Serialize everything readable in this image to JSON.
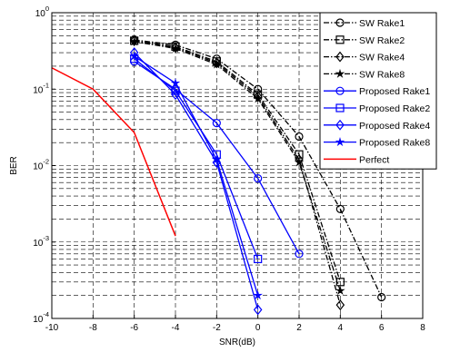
{
  "chart_data": {
    "type": "line",
    "xlabel": "SNR(dB)",
    "ylabel": "BER",
    "xlim": [
      -10,
      8
    ],
    "ylim": [
      0.0001,
      1
    ],
    "yscale": "log",
    "grid": true,
    "legend_position": "top-right",
    "x_ticks": [
      "-10",
      "-8",
      "-6",
      "-4",
      "-2",
      "0",
      "2",
      "4",
      "6",
      "8"
    ],
    "y_ticks": [
      {
        "base": "10",
        "exp": "0",
        "value": 1
      },
      {
        "base": "10",
        "exp": "-1",
        "value": 0.1
      },
      {
        "base": "10",
        "exp": "-2",
        "value": 0.01
      },
      {
        "base": "10",
        "exp": "-3",
        "value": 0.001
      },
      {
        "base": "10",
        "exp": "-4",
        "value": 0.0001
      }
    ],
    "series": [
      {
        "name": "SW Rake1",
        "color": "#000000",
        "dash": "dashdot",
        "marker": "circle",
        "x": [
          -6,
          -4,
          -2,
          0,
          2,
          4,
          6
        ],
        "y": [
          0.44,
          0.38,
          0.25,
          0.1,
          0.024,
          0.0027,
          0.00019
        ]
      },
      {
        "name": "SW Rake2",
        "color": "#000000",
        "dash": "dashdot",
        "marker": "square",
        "x": [
          -6,
          -4,
          -2,
          0,
          2,
          4
        ],
        "y": [
          0.43,
          0.36,
          0.23,
          0.085,
          0.014,
          0.0003
        ]
      },
      {
        "name": "SW Rake4",
        "color": "#000000",
        "dash": "dashdot",
        "marker": "diamond",
        "x": [
          -6,
          -4,
          -2,
          0,
          2,
          4
        ],
        "y": [
          0.43,
          0.35,
          0.22,
          0.08,
          0.012,
          0.00015
        ]
      },
      {
        "name": "SW Rake8",
        "color": "#000000",
        "dash": "dashdot",
        "marker": "star",
        "x": [
          -6,
          -4,
          -2,
          0,
          2,
          4
        ],
        "y": [
          0.42,
          0.34,
          0.21,
          0.075,
          0.011,
          0.00023
        ]
      },
      {
        "name": "Proposed Rake1",
        "color": "#0000ff",
        "dash": "solid",
        "marker": "circle",
        "x": [
          -6,
          -4,
          -2,
          0,
          2
        ],
        "y": [
          0.23,
          0.1,
          0.036,
          0.0068,
          0.0007
        ]
      },
      {
        "name": "Proposed Rake2",
        "color": "#0000ff",
        "dash": "solid",
        "marker": "square",
        "x": [
          -6,
          -4,
          -2,
          0
        ],
        "y": [
          0.25,
          0.095,
          0.014,
          0.0006
        ]
      },
      {
        "name": "Proposed Rake4",
        "color": "#0000ff",
        "dash": "solid",
        "marker": "diamond",
        "x": [
          -6,
          -4,
          -2,
          0
        ],
        "y": [
          0.3,
          0.085,
          0.011,
          0.00013
        ]
      },
      {
        "name": "Proposed Rake8",
        "color": "#0000ff",
        "dash": "solid",
        "marker": "star",
        "x": [
          -6,
          -4,
          -2,
          0
        ],
        "y": [
          0.27,
          0.12,
          0.012,
          0.0002
        ]
      },
      {
        "name": "Perfect",
        "color": "#ff0000",
        "dash": "solid",
        "marker": "none",
        "x": [
          -10,
          -8,
          -6,
          -4
        ],
        "y": [
          0.19,
          0.1,
          0.027,
          0.0012
        ]
      }
    ]
  }
}
